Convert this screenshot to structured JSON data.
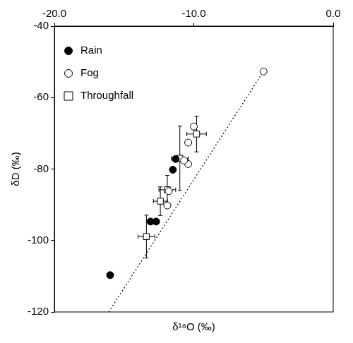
{
  "chart_data": {
    "type": "scatter",
    "x_label": "δ¹⁸O (‰)",
    "y_label": "δD (‰)",
    "xlim": [
      -20,
      0
    ],
    "xticks": [
      {
        "value": -20,
        "label": "-20.0"
      },
      {
        "value": -10,
        "label": "-10.0"
      },
      {
        "value": 0,
        "label": "0.0"
      }
    ],
    "ylim": [
      -120,
      -40
    ],
    "yticks": [
      -120,
      -100,
      -80,
      -60,
      -40
    ],
    "grid": false,
    "legend": "upper left",
    "series": [
      {
        "name": "Rain",
        "color": "#000000",
        "marker": "circle",
        "x": [
          -16.0,
          -13.1,
          -12.7,
          -11.3,
          -11.5
        ],
        "values": [
          -109.7,
          -94.7,
          -94.7,
          -77.2,
          -80.2
        ]
      },
      {
        "name": "Fog",
        "color": "#000000",
        "marker": "open_circle",
        "x": [
          -5.0,
          -10.0,
          -10.4,
          -10.4,
          -10.7,
          -11.8,
          -11.9
        ],
        "values": [
          -52.7,
          -68.1,
          -72.6,
          -78.6,
          -77.6,
          -86.2,
          -90.2
        ]
      },
      {
        "name": "Throughfall",
        "color": "#000000",
        "marker": "open_square",
        "x": [
          -9.8,
          -11.0,
          -11.9,
          -12.4,
          -13.4
        ],
        "values": [
          -70.2,
          -77.0,
          -85.8,
          -89.0,
          -98.9
        ],
        "x_error": [
          0.7,
          0.6,
          0.6,
          0.5,
          0.6
        ],
        "y_error": [
          5,
          9,
          4,
          4,
          6
        ]
      },
      {
        "type": "line",
        "color": "#000000",
        "line_style": "dotted",
        "x": [
          -16.1,
          -4.9
        ],
        "values": [
          -120,
          -52
        ]
      }
    ]
  }
}
